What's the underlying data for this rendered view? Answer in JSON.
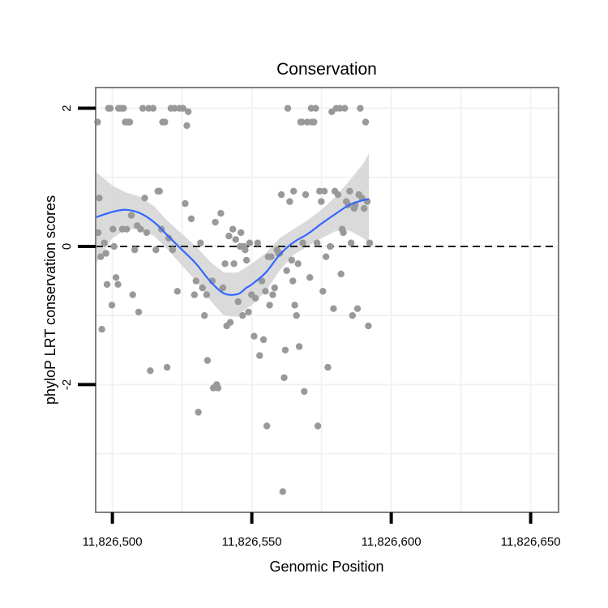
{
  "chart_data": {
    "type": "scatter",
    "title": "Conservation",
    "xlabel": "Genomic Position",
    "ylabel": "phyloP LRT conservation scores",
    "xlim": [
      11826494,
      11826660
    ],
    "ylim": [
      -3.85,
      2.3
    ],
    "x_ticks": [
      11826500,
      11826550,
      11826600,
      11826650
    ],
    "x_tick_labels": [
      "11,826,500",
      "11,826,550",
      "11,826,600",
      "11,826,650"
    ],
    "y_ticks": [
      -2,
      0,
      2
    ],
    "y_tick_labels": [
      "-2",
      "0",
      "2"
    ],
    "reference_line": {
      "y": 0,
      "style": "dashed"
    },
    "grid": true,
    "colors": {
      "points": "#999999",
      "smooth_line": "#3366ff",
      "ribbon": "#d3d3d3",
      "panel_border": "#808080",
      "grid": "#f2f2f2"
    },
    "points": [
      [
        11826494.7,
        1.8
      ],
      [
        11826494.9,
        0.2
      ],
      [
        11826495.3,
        0.7
      ],
      [
        11826495.8,
        -0.15
      ],
      [
        11826496.2,
        -1.2
      ],
      [
        11826497.1,
        0.05
      ],
      [
        11826497.7,
        -0.1
      ],
      [
        11826498.1,
        -0.55
      ],
      [
        11826498.6,
        2.0
      ],
      [
        11826499.3,
        2.0
      ],
      [
        11826499.8,
        -0.85
      ],
      [
        11826500.2,
        0.25
      ],
      [
        11826500.6,
        0.0
      ],
      [
        11826501.3,
        -0.45
      ],
      [
        11826502.0,
        -0.55
      ],
      [
        11826502.2,
        2.0
      ],
      [
        11826503.0,
        2.0
      ],
      [
        11826503.6,
        0.25
      ],
      [
        11826504.0,
        2.0
      ],
      [
        11826504.6,
        1.8
      ],
      [
        11826505.1,
        0.25
      ],
      [
        11826505.6,
        1.8
      ],
      [
        11826506.2,
        1.8
      ],
      [
        11826506.8,
        0.45
      ],
      [
        11826507.3,
        -0.7
      ],
      [
        11826508.0,
        -0.05
      ],
      [
        11826508.9,
        0.3
      ],
      [
        11826509.4,
        -0.95
      ],
      [
        11826510.1,
        0.25
      ],
      [
        11826510.9,
        2.0
      ],
      [
        11826511.6,
        0.7
      ],
      [
        11826512.3,
        0.2
      ],
      [
        11826513.0,
        2.0
      ],
      [
        11826513.6,
        -1.8
      ],
      [
        11826514.6,
        2.0
      ],
      [
        11826515.6,
        -0.05
      ],
      [
        11826516.3,
        0.8
      ],
      [
        11826516.9,
        0.8
      ],
      [
        11826517.6,
        0.25
      ],
      [
        11826518.0,
        1.8
      ],
      [
        11826518.8,
        1.8
      ],
      [
        11826519.6,
        -1.75
      ],
      [
        11826520.2,
        0.12
      ],
      [
        11826521.0,
        2.0
      ],
      [
        11826521.6,
        -0.05
      ],
      [
        11826522.3,
        2.0
      ],
      [
        11826523.3,
        -0.65
      ],
      [
        11826524.1,
        2.0
      ],
      [
        11826525.3,
        2.0
      ],
      [
        11826526.1,
        0.62
      ],
      [
        11826526.7,
        1.75
      ],
      [
        11826527.2,
        1.95
      ],
      [
        11826528.3,
        0.4
      ],
      [
        11826529.4,
        -0.7
      ],
      [
        11826530.0,
        -0.5
      ],
      [
        11826530.8,
        -2.4
      ],
      [
        11826531.6,
        0.05
      ],
      [
        11826532.3,
        -0.6
      ],
      [
        11826533.0,
        -1.0
      ],
      [
        11826533.8,
        -0.7
      ],
      [
        11826534.1,
        -1.65
      ],
      [
        11826535.8,
        -0.5
      ],
      [
        11826536.2,
        -2.05
      ],
      [
        11826536.9,
        0.35
      ],
      [
        11826537.4,
        -2.0
      ],
      [
        11826537.9,
        -2.05
      ],
      [
        11826538.9,
        0.48
      ],
      [
        11826539.6,
        -0.6
      ],
      [
        11826540.4,
        -0.25
      ],
      [
        11826541.0,
        -1.15
      ],
      [
        11826541.8,
        0.15
      ],
      [
        11826542.3,
        -1.1
      ],
      [
        11826543.2,
        0.25
      ],
      [
        11826543.6,
        -0.25
      ],
      [
        11826544.2,
        0.1
      ],
      [
        11826545.1,
        -0.8
      ],
      [
        11826545.8,
        0.0
      ],
      [
        11826546.1,
        0.2
      ],
      [
        11826546.7,
        -1.0
      ],
      [
        11826547.1,
        0.0
      ],
      [
        11826547.6,
        -0.05
      ],
      [
        11826548.1,
        -0.2
      ],
      [
        11826548.8,
        -0.95
      ],
      [
        11826549.2,
        0.05
      ],
      [
        11826549.9,
        -0.7
      ],
      [
        11826550.8,
        -1.3
      ],
      [
        11826551.3,
        -0.75
      ],
      [
        11826552.1,
        0.05
      ],
      [
        11826552.8,
        -1.58
      ],
      [
        11826553.6,
        -0.5
      ],
      [
        11826554.2,
        -1.35
      ],
      [
        11826554.9,
        -0.65
      ],
      [
        11826555.4,
        -2.6
      ],
      [
        11826555.9,
        -0.15
      ],
      [
        11826556.4,
        -0.85
      ],
      [
        11826556.9,
        -0.15
      ],
      [
        11826557.5,
        -0.7
      ],
      [
        11826558.2,
        -0.6
      ],
      [
        11826559.0,
        -0.05
      ],
      [
        11826559.6,
        -0.1
      ],
      [
        11826560.0,
        -0.1
      ],
      [
        11826560.6,
        0.75
      ],
      [
        11826561.1,
        -3.55
      ],
      [
        11826561.6,
        -1.9
      ],
      [
        11826562.0,
        -1.5
      ],
      [
        11826562.5,
        -0.35
      ],
      [
        11826562.9,
        2.0
      ],
      [
        11826563.6,
        0.65
      ],
      [
        11826564.3,
        -0.2
      ],
      [
        11826564.7,
        -0.5
      ],
      [
        11826565.0,
        0.8
      ],
      [
        11826565.4,
        -0.85
      ],
      [
        11826566.0,
        -1.0
      ],
      [
        11826566.6,
        -0.25
      ],
      [
        11826567.0,
        -1.45
      ],
      [
        11826567.5,
        1.8
      ],
      [
        11826568.0,
        1.8
      ],
      [
        11826568.3,
        0.05
      ],
      [
        11826568.8,
        -2.1
      ],
      [
        11826569.3,
        0.75
      ],
      [
        11826569.9,
        1.8
      ],
      [
        11826570.8,
        -0.45
      ],
      [
        11826571.3,
        2.0
      ],
      [
        11826571.6,
        1.8
      ],
      [
        11826572.3,
        1.8
      ],
      [
        11826572.9,
        2.0
      ],
      [
        11826573.4,
        0.05
      ],
      [
        11826573.7,
        -2.6
      ],
      [
        11826574.3,
        0.8
      ],
      [
        11826574.9,
        0.65
      ],
      [
        11826575.5,
        -0.65
      ],
      [
        11826576.0,
        0.8
      ],
      [
        11826576.6,
        -0.15
      ],
      [
        11826577.3,
        -1.75
      ],
      [
        11826578.1,
        0.0
      ],
      [
        11826578.7,
        1.95
      ],
      [
        11826579.3,
        -0.9
      ],
      [
        11826579.8,
        0.8
      ],
      [
        11826580.3,
        2.0
      ],
      [
        11826580.9,
        0.75
      ],
      [
        11826581.6,
        2.0
      ],
      [
        11826582.0,
        -0.4
      ],
      [
        11826582.4,
        0.25
      ],
      [
        11826582.8,
        0.2
      ],
      [
        11826583.3,
        2.0
      ],
      [
        11826583.9,
        0.65
      ],
      [
        11826584.6,
        0.6
      ],
      [
        11826585.1,
        0.8
      ],
      [
        11826585.6,
        0.05
      ],
      [
        11826586.1,
        -1.0
      ],
      [
        11826586.7,
        0.55
      ],
      [
        11826587.1,
        0.6
      ],
      [
        11826587.9,
        -0.9
      ],
      [
        11826588.4,
        0.75
      ],
      [
        11826588.9,
        2.0
      ],
      [
        11826589.5,
        0.7
      ],
      [
        11826590.3,
        0.55
      ],
      [
        11826590.8,
        1.8
      ],
      [
        11826591.4,
        0.65
      ],
      [
        11826591.8,
        -1.15
      ],
      [
        11826592.3,
        0.05
      ]
    ],
    "smooth_fit": {
      "x": [
        11826494,
        11826500,
        11826505,
        11826510,
        11826515,
        11826520,
        11826525,
        11826530,
        11826535,
        11826540,
        11826545,
        11826548,
        11826550,
        11826555,
        11826560,
        11826565,
        11826570,
        11826575,
        11826580,
        11826585,
        11826590,
        11826592
      ],
      "y": [
        0.42,
        0.5,
        0.53,
        0.48,
        0.35,
        0.15,
        -0.05,
        -0.25,
        -0.5,
        -0.68,
        -0.69,
        -0.6,
        -0.55,
        -0.38,
        -0.12,
        0.06,
        0.18,
        0.33,
        0.47,
        0.6,
        0.67,
        0.68
      ],
      "lo": [
        -0.25,
        0.12,
        0.25,
        0.25,
        0.15,
        -0.05,
        -0.28,
        -0.5,
        -0.78,
        -1.0,
        -1.02,
        -0.9,
        -0.85,
        -0.65,
        -0.35,
        -0.12,
        0.0,
        0.12,
        0.22,
        0.23,
        0.12,
        0.05
      ],
      "hi": [
        1.08,
        0.88,
        0.78,
        0.72,
        0.58,
        0.36,
        0.18,
        0.0,
        -0.22,
        -0.38,
        -0.38,
        -0.3,
        -0.25,
        -0.1,
        0.12,
        0.25,
        0.38,
        0.53,
        0.72,
        0.95,
        1.2,
        1.35
      ]
    }
  }
}
